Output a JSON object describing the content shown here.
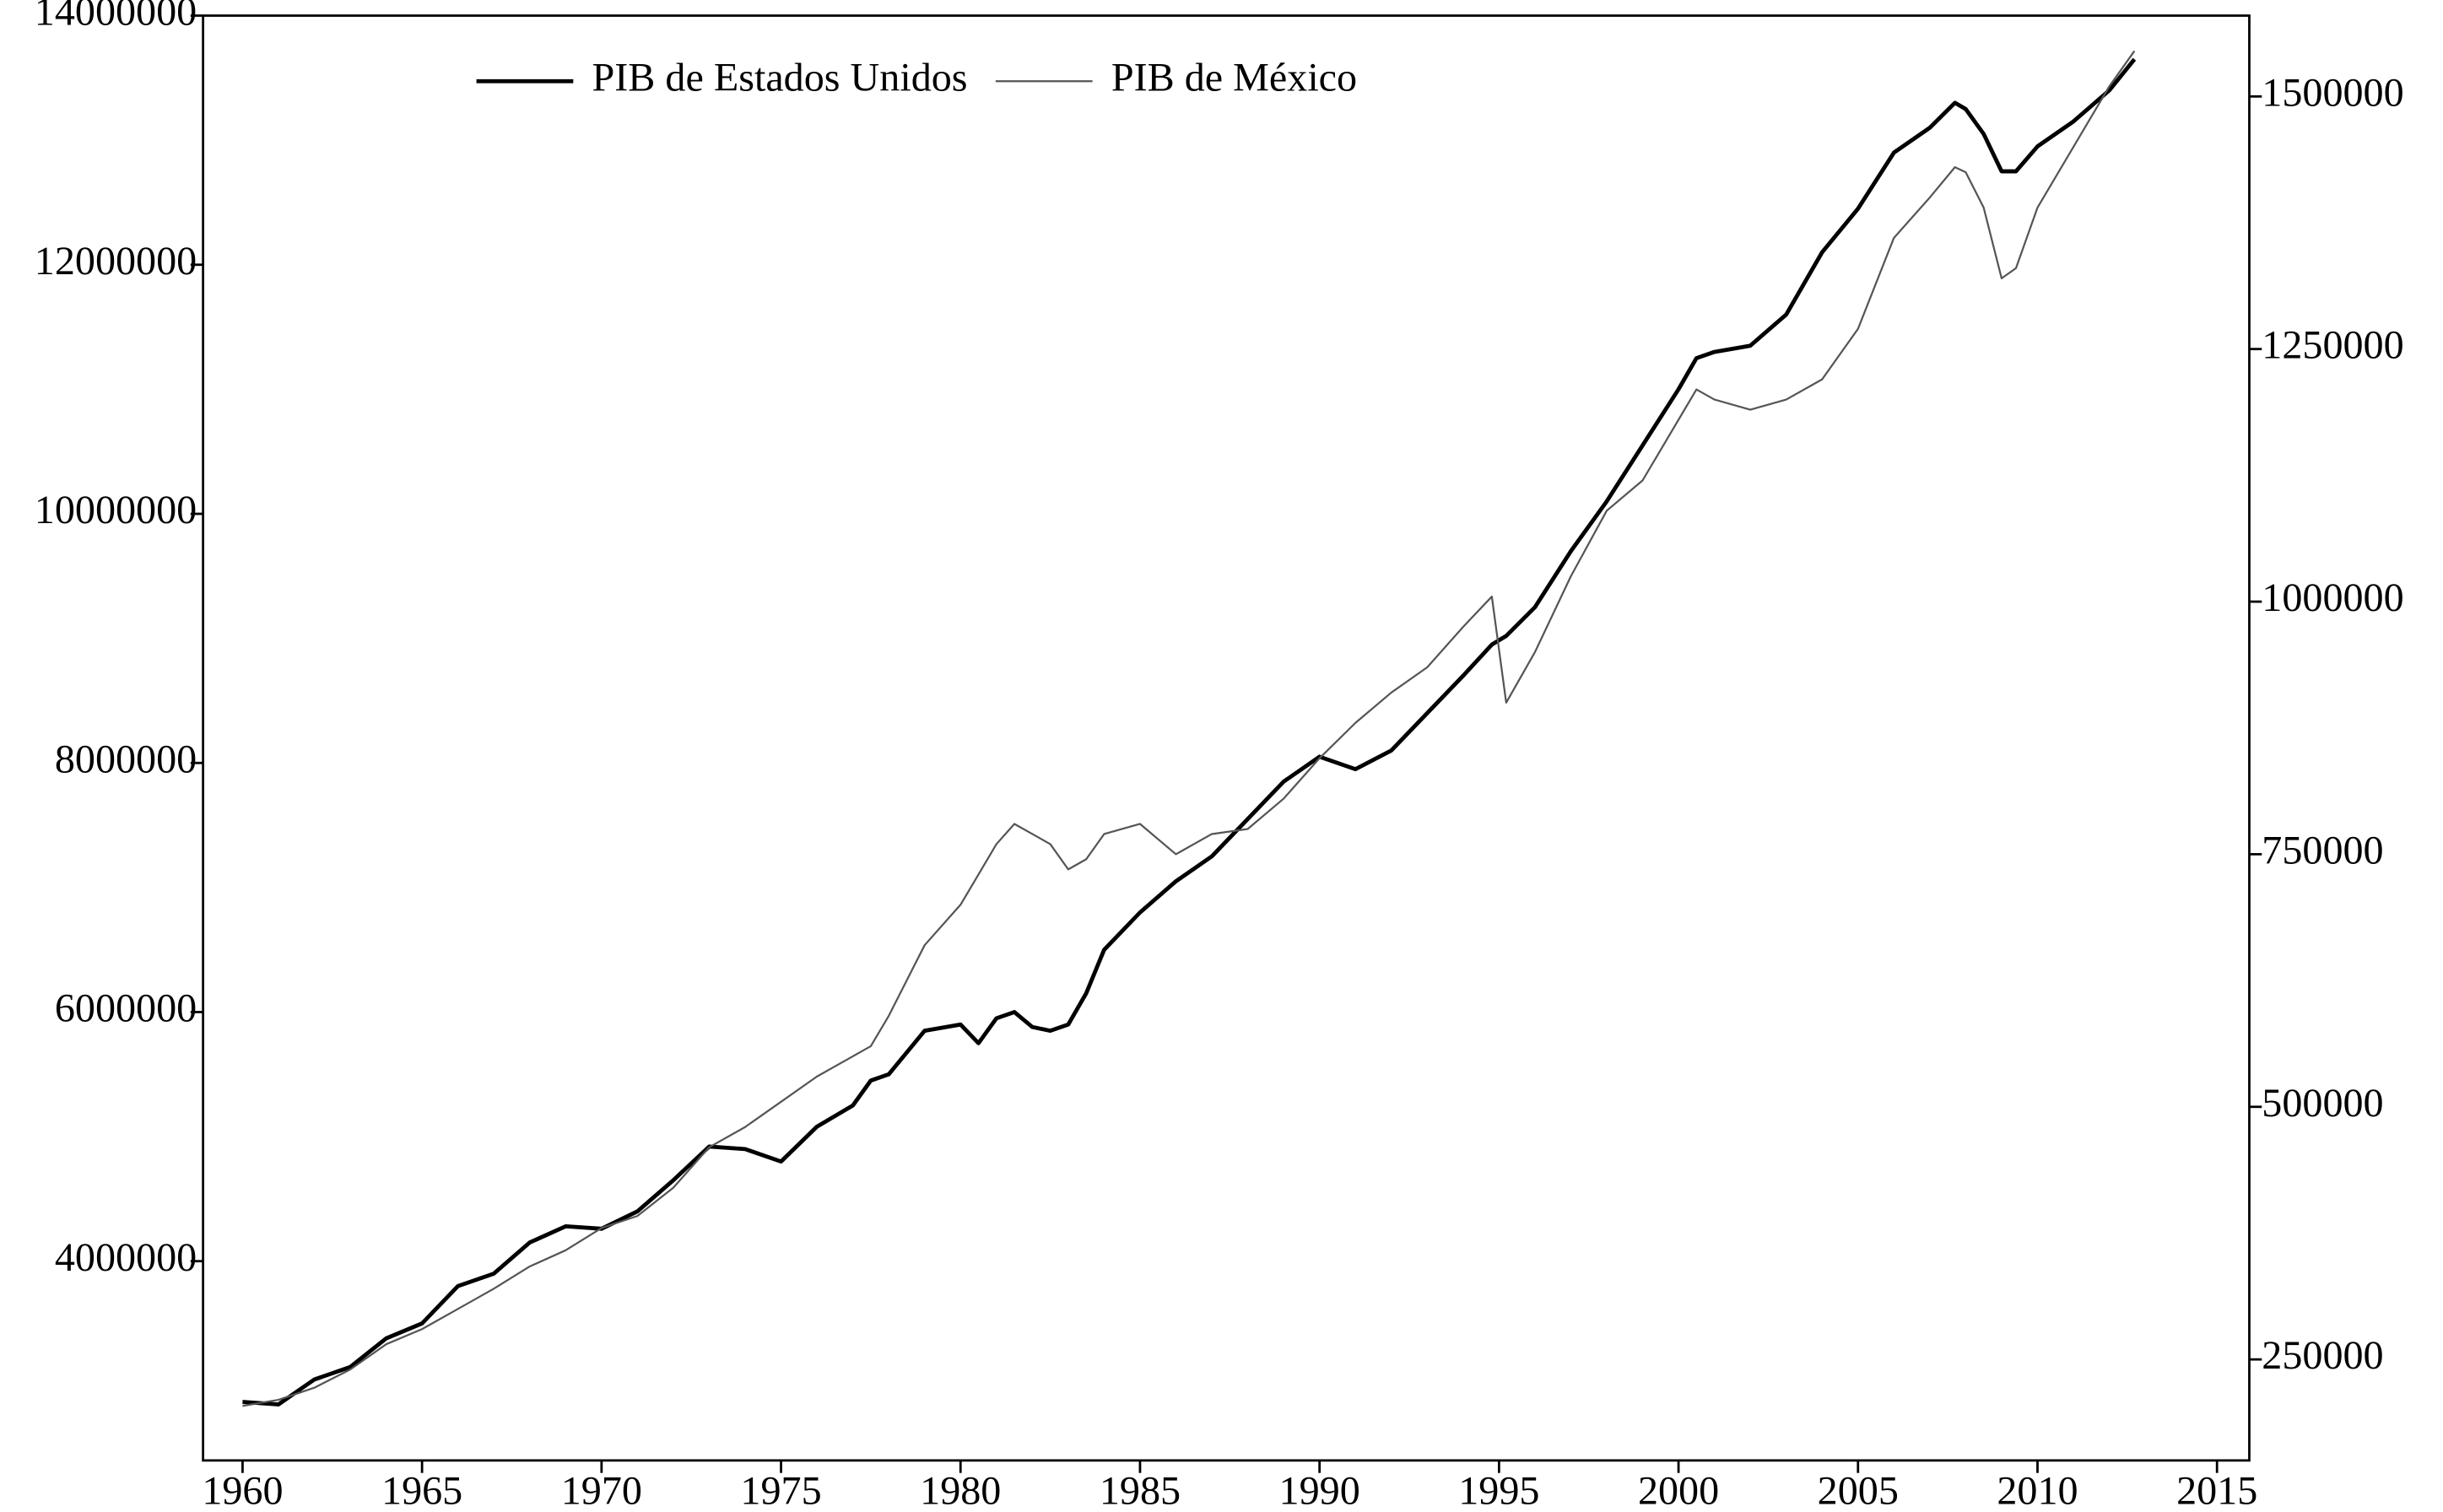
{
  "chart_data": {
    "type": "line",
    "x": [
      1960,
      1961,
      1962,
      1963,
      1964,
      1965,
      1966,
      1967,
      1968,
      1969,
      1970,
      1971,
      1972,
      1973,
      1974,
      1975,
      1976,
      1977,
      1977.5,
      1978,
      1979,
      1980,
      1980.5,
      1981,
      1981.5,
      1982,
      1982.5,
      1983,
      1983.5,
      1984,
      1985,
      1986,
      1987,
      1988,
      1989,
      1990,
      1991,
      1992,
      1993,
      1994,
      1994.8,
      1995.2,
      1996,
      1997,
      1998,
      1999,
      2000,
      2000.5,
      2001,
      2002,
      2003,
      2004,
      2005,
      2006,
      2007,
      2007.7,
      2008,
      2008.5,
      2009,
      2009.4,
      2010,
      2011,
      2012,
      2012.7
    ],
    "series": [
      {
        "name": "PIB de Estados Unidos",
        "color": "#000000",
        "values": [
          2870000,
          2850000,
          3050000,
          3150000,
          3380000,
          3500000,
          3800000,
          3900000,
          4150000,
          4280000,
          4260000,
          4400000,
          4650000,
          4920000,
          4900000,
          4800000,
          5080000,
          5250000,
          5450000,
          5500000,
          5850000,
          5900000,
          5750000,
          5950000,
          6000000,
          5880000,
          5850000,
          5900000,
          6150000,
          6500000,
          6800000,
          7050000,
          7250000,
          7550000,
          7850000,
          8050000,
          7950000,
          8100000,
          8400000,
          8700000,
          8950000,
          9020000,
          9250000,
          9700000,
          10100000,
          10550000,
          11000000,
          11250000,
          11300000,
          11350000,
          11600000,
          12100000,
          12450000,
          12900000,
          13100000,
          13300000,
          13250000,
          13050000,
          12750000,
          12750000,
          12950000,
          13150000,
          13400000,
          13650000
        ]
      },
      {
        "name": "PIB de México",
        "color": "#555555",
        "axis": "y2",
        "values": [
          204000,
          210000,
          222000,
          240000,
          265000,
          280000,
          300000,
          320000,
          342000,
          358000,
          380000,
          392000,
          420000,
          460000,
          480000,
          505000,
          530000,
          550000,
          560000,
          590000,
          660000,
          700000,
          730000,
          760000,
          780000,
          770000,
          760000,
          735000,
          745000,
          770000,
          780000,
          750000,
          770000,
          775000,
          805000,
          845000,
          880000,
          910000,
          935000,
          975000,
          1005000,
          900000,
          950000,
          1025000,
          1090000,
          1120000,
          1180000,
          1210000,
          1200000,
          1190000,
          1200000,
          1220000,
          1270000,
          1360000,
          1400000,
          1430000,
          1425000,
          1390000,
          1320000,
          1330000,
          1390000,
          1450000,
          1510000,
          1545000
        ]
      }
    ],
    "xlim": [
      1958.9,
      2015.9
    ],
    "xticks": [
      1960,
      1965,
      1970,
      1975,
      1980,
      1985,
      1990,
      1995,
      2000,
      2005,
      2010,
      2015
    ],
    "ylim": [
      2400000,
      14000000
    ],
    "yticks": [
      4000000,
      6000000,
      8000000,
      10000000,
      12000000,
      14000000
    ],
    "y2lim": [
      150000,
      1580000
    ],
    "y2ticks": [
      250000,
      500000,
      750000,
      1000000,
      1250000,
      1500000
    ],
    "legend": "top"
  }
}
